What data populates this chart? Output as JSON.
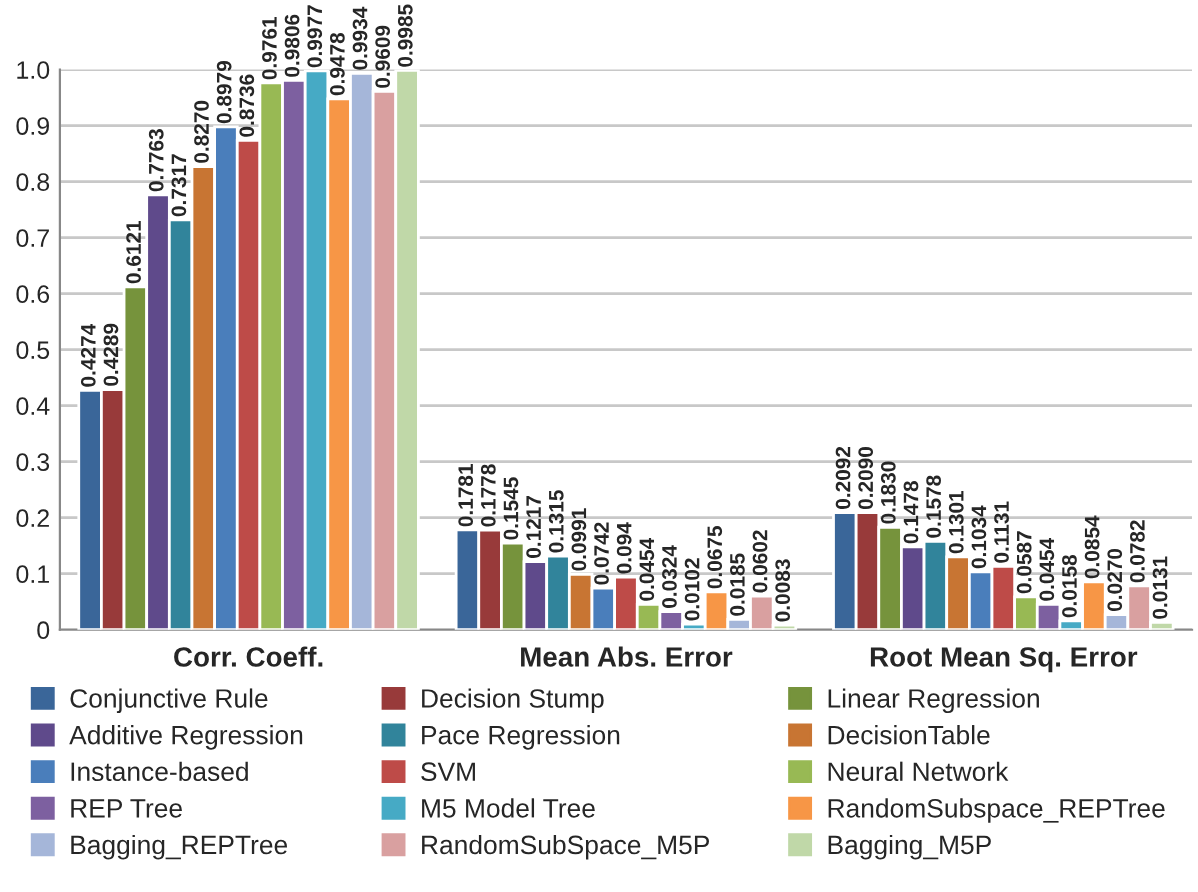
{
  "chart_data": {
    "type": "bar",
    "categories": [
      "Corr. Coeff.",
      "Mean Abs. Error",
      "Root Mean Sq. Error"
    ],
    "series": [
      {
        "name": "Conjunctive Rule",
        "color": "#3a6699",
        "values": [
          0.4274,
          0.1781,
          0.2092
        ],
        "value_labels": [
          "0.4274",
          "0.1781",
          "0.2092"
        ]
      },
      {
        "name": "Decision Stump",
        "color": "#983a3a",
        "values": [
          0.4289,
          0.1778,
          0.209
        ],
        "value_labels": [
          "0.4289",
          "0.1778",
          "0.2090"
        ]
      },
      {
        "name": "Linear Regression",
        "color": "#76933c",
        "values": [
          0.6121,
          0.1545,
          0.183
        ],
        "value_labels": [
          "0.6121",
          "0.1545",
          "0.1830"
        ]
      },
      {
        "name": "Additive Regression",
        "color": "#5f4a8b",
        "values": [
          0.7763,
          0.1217,
          0.1478
        ],
        "value_labels": [
          "0.7763",
          "0.1217",
          "0.1478"
        ]
      },
      {
        "name": "Pace Regression",
        "color": "#31849b",
        "values": [
          0.7317,
          0.1315,
          0.1578
        ],
        "value_labels": [
          "0.7317",
          "0.1315",
          "0.1578"
        ]
      },
      {
        "name": "DecisionTable",
        "color": "#c87533",
        "values": [
          0.827,
          0.0991,
          0.1301
        ],
        "value_labels": [
          "0.8270",
          "0.0991",
          "0.1301"
        ]
      },
      {
        "name": "Instance-based",
        "color": "#4a7ebb",
        "values": [
          0.8979,
          0.0742,
          0.1034
        ],
        "value_labels": [
          "0.8979",
          "0.0742",
          "0.1034"
        ]
      },
      {
        "name": "SVM",
        "color": "#be4b48",
        "values": [
          0.8736,
          0.094,
          0.1131
        ],
        "value_labels": [
          "0.8736",
          "0.094",
          "0.1131"
        ]
      },
      {
        "name": "Neural Network",
        "color": "#98b954",
        "values": [
          0.9761,
          0.0454,
          0.0587
        ],
        "value_labels": [
          "0.9761",
          "0.0454",
          "0.0587"
        ]
      },
      {
        "name": "REP Tree",
        "color": "#7d60a0",
        "values": [
          0.9806,
          0.0324,
          0.0454
        ],
        "value_labels": [
          "0.9806",
          "0.0324",
          "0.0454"
        ]
      },
      {
        "name": "M5 Model Tree",
        "color": "#46aac5",
        "values": [
          0.9977,
          0.0102,
          0.0158
        ],
        "value_labels": [
          "0.9977",
          "0.0102",
          "0.0158"
        ]
      },
      {
        "name": "RandomSubspace_REPTree",
        "color": "#f79646",
        "values": [
          0.9478,
          0.0675,
          0.0854
        ],
        "value_labels": [
          "0.9478",
          "0.0675",
          "0.0854"
        ]
      },
      {
        "name": "Bagging_REPTree",
        "color": "#a5b6d9",
        "values": [
          0.9934,
          0.0185,
          0.027
        ],
        "value_labels": [
          "0.9934",
          "0.0185",
          "0.0270"
        ]
      },
      {
        "name": "RandomSubSpace_M5P",
        "color": "#d9a0a0",
        "values": [
          0.9609,
          0.0602,
          0.0782
        ],
        "value_labels": [
          "0.9609",
          "0.0602",
          "0.0782"
        ]
      },
      {
        "name": "Bagging_M5P",
        "color": "#c0d8a8",
        "values": [
          0.9985,
          0.0083,
          0.0131
        ],
        "value_labels": [
          "0.9985",
          "0.0083",
          "0.0131"
        ]
      }
    ],
    "ylim": [
      0,
      1.0
    ],
    "yticks": [
      0,
      0.1,
      0.2,
      0.3,
      0.4,
      0.5,
      0.6,
      0.7,
      0.8,
      0.9,
      {
        "value": 1.0,
        "label": "1.0"
      }
    ],
    "grid": "y",
    "legend": "bottom"
  }
}
